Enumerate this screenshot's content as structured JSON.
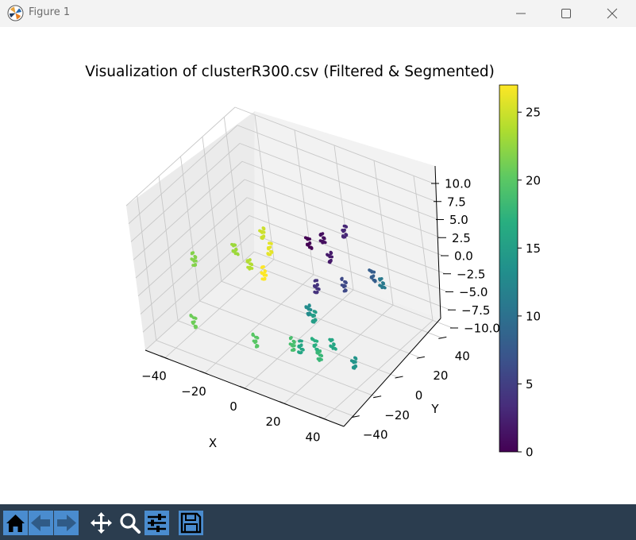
{
  "window": {
    "title": "Figure 1"
  },
  "window_controls": [
    "minimize-icon",
    "maximize-icon",
    "close-icon"
  ],
  "toolbar": {
    "tools": [
      "home-icon",
      "back-icon",
      "forward-icon",
      "pan-icon",
      "zoom-icon",
      "configure-subplots-icon",
      "save-icon"
    ]
  },
  "chart_data": {
    "type": "scatter",
    "projection": "3d",
    "title": "Visualization of clusterR300.csv (Filtered & Segmented)",
    "xlabel": "X",
    "ylabel": "Y",
    "zlabel": "",
    "xticks": [
      "−40",
      "−20",
      "0",
      "20",
      "40"
    ],
    "yticks": [
      "−40",
      "−20",
      "0",
      "20",
      "40"
    ],
    "zticks": [
      "−10.0",
      "−7.5",
      "−5.0",
      "−2.5",
      "0.0",
      "2.5",
      "5.0",
      "7.5",
      "10.0"
    ],
    "colorbar": {
      "colormap": "viridis",
      "min": 0,
      "max": 27,
      "ticks": [
        "0",
        "5",
        "10",
        "15",
        "20",
        "25"
      ]
    },
    "clusters": [
      {
        "x": -32,
        "y": -28,
        "z": 1.5,
        "label": 22
      },
      {
        "x": -30,
        "y": -38,
        "z": -5.5,
        "label": 21
      },
      {
        "x": -20,
        "y": -12,
        "z": 2.0,
        "label": 23
      },
      {
        "x": -12,
        "y": -14,
        "z": 1.0,
        "label": 24
      },
      {
        "x": -10,
        "y": -3,
        "z": 4.0,
        "label": 25
      },
      {
        "x": -6,
        "y": -5,
        "z": 2.5,
        "label": 26
      },
      {
        "x": -5,
        "y": -14,
        "z": 0.5,
        "label": 27
      },
      {
        "x": -7,
        "y": -25,
        "z": -7.5,
        "label": 20
      },
      {
        "x": 10,
        "y": 3,
        "z": 4.0,
        "label": 0
      },
      {
        "x": 13,
        "y": 10,
        "z": 4.0,
        "label": 1
      },
      {
        "x": 17,
        "y": 8,
        "z": 2.0,
        "label": 2
      },
      {
        "x": 20,
        "y": 18,
        "z": 4.5,
        "label": 3
      },
      {
        "x": 11,
        "y": 3,
        "z": -2.0,
        "label": 4
      },
      {
        "x": 20,
        "y": 12,
        "z": -2.0,
        "label": 6
      },
      {
        "x": 28,
        "y": 24,
        "z": -1.5,
        "label": 8
      },
      {
        "x": 31,
        "y": 26,
        "z": -2.5,
        "label": 11
      },
      {
        "x": 11,
        "y": -6,
        "z": -4.0,
        "label": 13
      },
      {
        "x": 14,
        "y": -7,
        "z": -4.5,
        "label": 15
      },
      {
        "x": 10,
        "y": -15,
        "z": -8.0,
        "label": 16
      },
      {
        "x": 6,
        "y": -15,
        "z": -8.0,
        "label": 19
      },
      {
        "x": 14,
        "y": -9,
        "z": -8.0,
        "label": 17
      },
      {
        "x": 20,
        "y": -4,
        "z": -8.0,
        "label": 16
      },
      {
        "x": 20,
        "y": -16,
        "z": -8.0,
        "label": 18
      },
      {
        "x": 29,
        "y": -2,
        "z": -10.0,
        "label": 14
      }
    ]
  }
}
